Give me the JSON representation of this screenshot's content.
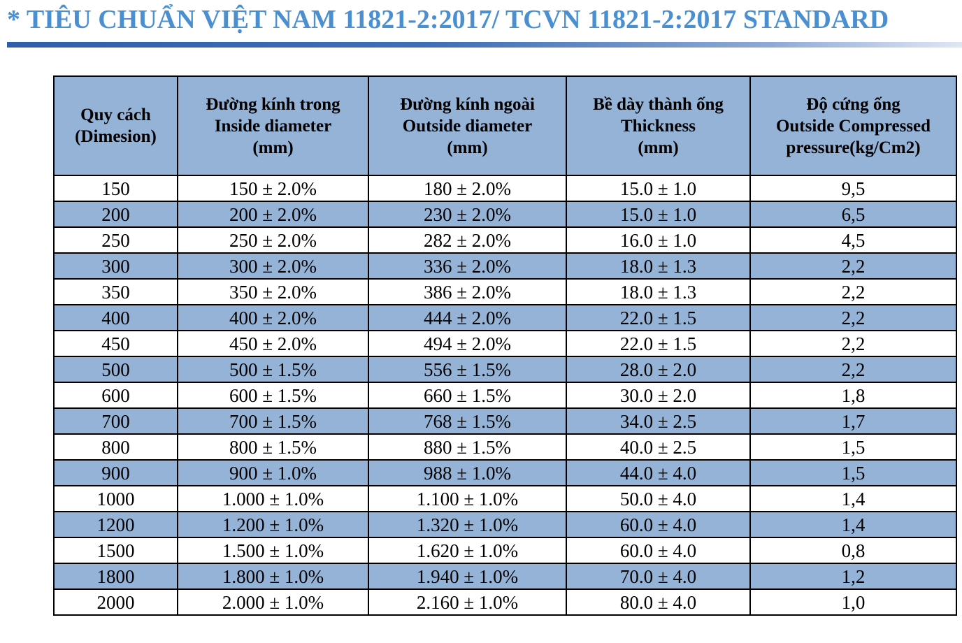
{
  "title": "* TIÊU CHUẨN VIỆT NAM 11821-2:2017/ TCVN 11821-2:2017 STANDARD",
  "table": {
    "headers": [
      [
        "Quy cách",
        "(Dimesion)"
      ],
      [
        "Đường kính trong",
        "Inside diameter",
        "(mm)"
      ],
      [
        "Đường kính ngoài",
        "Outside diameter",
        "(mm)"
      ],
      [
        "Bề dày thành ống",
        "Thickness",
        "(mm)"
      ],
      [
        "Độ cứng ống",
        "Outside Compressed",
        "pressure(kg/Cm2)"
      ]
    ],
    "rows": [
      [
        "150",
        "150 ± 2.0%",
        "180 ± 2.0%",
        "15.0 ± 1.0",
        "9,5"
      ],
      [
        "200",
        "200 ± 2.0%",
        "230 ± 2.0%",
        "15.0 ± 1.0",
        "6,5"
      ],
      [
        "250",
        "250 ± 2.0%",
        "282 ± 2.0%",
        "16.0 ± 1.0",
        "4,5"
      ],
      [
        "300",
        "300 ± 2.0%",
        "336 ± 2.0%",
        "18.0 ± 1.3",
        "2,2"
      ],
      [
        "350",
        "350 ± 2.0%",
        "386 ± 2.0%",
        "18.0 ± 1.3",
        "2,2"
      ],
      [
        "400",
        "400 ± 2.0%",
        "444 ± 2.0%",
        "22.0 ± 1.5",
        "2,2"
      ],
      [
        "450",
        "450 ± 2.0%",
        "494 ± 2.0%",
        "22.0 ± 1.5",
        "2,2"
      ],
      [
        "500",
        "500 ± 1.5%",
        "556 ± 1.5%",
        "28.0 ± 2.0",
        "2,2"
      ],
      [
        "600",
        "600 ± 1.5%",
        "660 ± 1.5%",
        "30.0 ± 2.0",
        "1,8"
      ],
      [
        "700",
        "700 ± 1.5%",
        "768 ± 1.5%",
        "34.0 ± 2.5",
        "1,7"
      ],
      [
        "800",
        "800 ± 1.5%",
        "880 ± 1.5%",
        "40.0 ± 2.5",
        "1,5"
      ],
      [
        "900",
        "900 ± 1.0%",
        "988 ± 1.0%",
        "44.0 ± 4.0",
        "1,5"
      ],
      [
        "1000",
        "1.000 ± 1.0%",
        "1.100 ± 1.0%",
        "50.0 ± 4.0",
        "1,4"
      ],
      [
        "1200",
        "1.200 ± 1.0%",
        "1.320 ± 1.0%",
        "60.0 ± 4.0",
        "1,4"
      ],
      [
        "1500",
        "1.500 ± 1.0%",
        "1.620 ± 1.0%",
        "60.0 ± 4.0",
        "0,8"
      ],
      [
        "1800",
        "1.800 ± 1.0%",
        "1.940 ± 1.0%",
        "70.0 ± 4.0",
        "1,2"
      ],
      [
        "2000",
        "2.000 ± 1.0%",
        "2.160 ± 1.0%",
        "80.0 ± 4.0",
        "1,0"
      ]
    ]
  },
  "colors": {
    "title": "#4a90d0",
    "rule": "#2f5fa8",
    "band": "#95b3d7"
  }
}
